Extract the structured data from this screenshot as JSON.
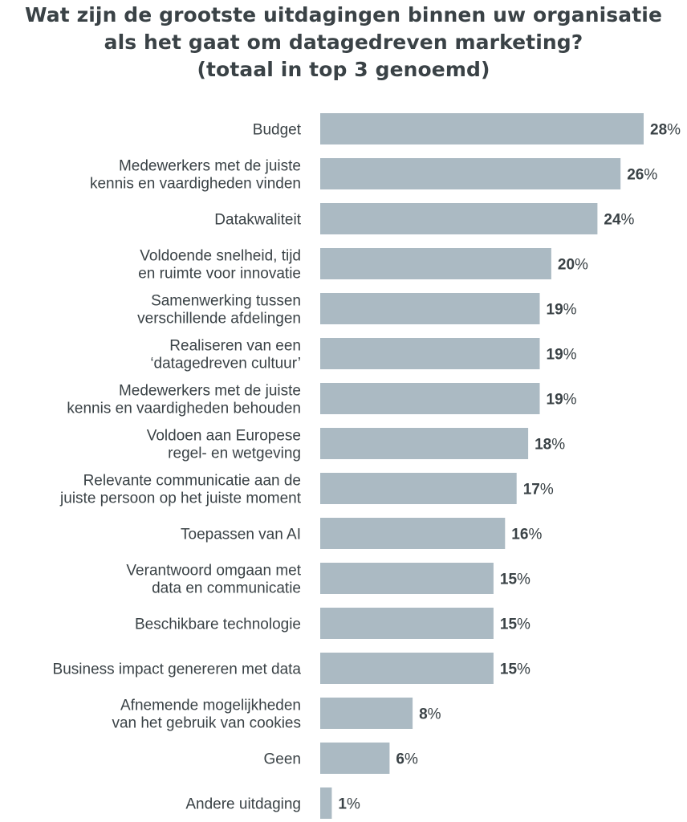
{
  "title_lines": [
    "Wat zijn de grootste uitdagingen binnen uw organisatie",
    "als het gaat om datagedreven marketing?",
    "(totaal in top 3 genoemd)"
  ],
  "colors": {
    "bar": "#abbac3",
    "text": "#3a4246"
  },
  "chart_data": {
    "type": "bar",
    "orientation": "horizontal",
    "title": "Wat zijn de grootste uitdagingen binnen uw organisatie als het gaat om datagedreven marketing? (totaal in top 3 genoemd)",
    "unit": "%",
    "categories": [
      [
        "Budget"
      ],
      [
        "Medewerkers met de juiste",
        "kennis en vaardigheden vinden"
      ],
      [
        "Datakwaliteit"
      ],
      [
        "Voldoende snelheid, tijd",
        "en ruimte voor innovatie"
      ],
      [
        "Samenwerking tussen",
        "verschillende afdelingen"
      ],
      [
        "Realiseren van een",
        "‘datagedreven cultuur’"
      ],
      [
        "Medewerkers met de juiste",
        "kennis en vaardigheden behouden"
      ],
      [
        "Voldoen aan Europese",
        "regel- en wetgeving"
      ],
      [
        "Relevante communicatie aan de",
        "juiste persoon op het juiste moment"
      ],
      [
        "Toepassen van AI"
      ],
      [
        "Verantwoord omgaan met",
        "data en communicatie"
      ],
      [
        "Beschikbare technologie"
      ],
      [
        "Business impact genereren met data"
      ],
      [
        "Afnemende mogelijkheden",
        "van het gebruik van cookies"
      ],
      [
        "Geen"
      ],
      [
        "Andere uitdaging"
      ]
    ],
    "values": [
      28,
      26,
      24,
      20,
      19,
      19,
      19,
      18,
      17,
      16,
      15,
      15,
      15,
      8,
      6,
      1
    ],
    "xlim": [
      0,
      28
    ],
    "grid": false,
    "legend": "none"
  }
}
